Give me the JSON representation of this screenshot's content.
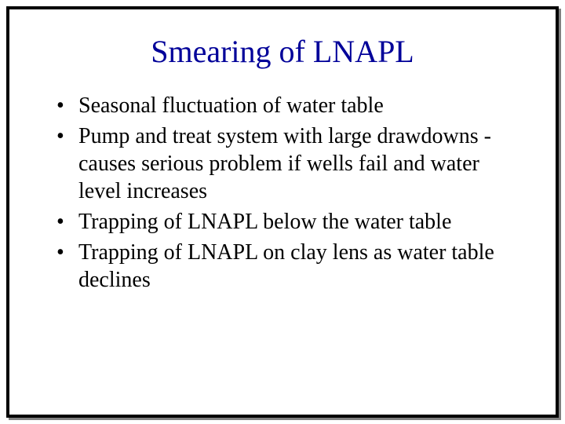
{
  "slide": {
    "title": "Smearing of LNAPL",
    "title_color": "#000099",
    "bullets": [
      "Seasonal fluctuation of water table",
      "Pump and treat system with large drawdowns - causes serious problem if wells fail and water level increases",
      "Trapping of LNAPL below the water table",
      "Trapping of LNAPL on clay lens as water table declines"
    ],
    "frame": {
      "border_color": "#000000",
      "border_width": 4,
      "shadow_color": "#808080",
      "background_color": "#ffffff"
    },
    "typography": {
      "title_fontsize": 40,
      "body_fontsize": 28,
      "font_family": "Times New Roman"
    }
  }
}
